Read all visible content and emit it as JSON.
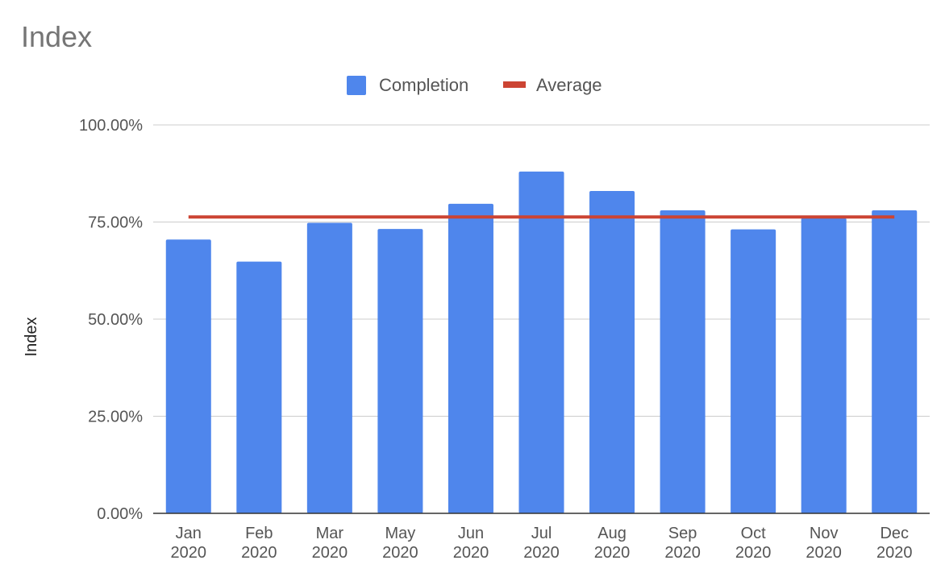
{
  "chart_data": {
    "type": "bar",
    "title": "Index",
    "ylabel": "Index",
    "xlabel": "",
    "categories": [
      [
        "Jan",
        "2020"
      ],
      [
        "Feb",
        "2020"
      ],
      [
        "Mar",
        "2020"
      ],
      [
        "May",
        "2020"
      ],
      [
        "Jun",
        "2020"
      ],
      [
        "Jul",
        "2020"
      ],
      [
        "Aug",
        "2020"
      ],
      [
        "Sep",
        "2020"
      ],
      [
        "Oct",
        "2020"
      ],
      [
        "Nov",
        "2020"
      ],
      [
        "Dec",
        "2020"
      ]
    ],
    "series": [
      {
        "name": "Completion",
        "type": "bar",
        "color": "#4f86ec",
        "values": [
          0.705,
          0.648,
          0.748,
          0.732,
          0.797,
          0.88,
          0.83,
          0.78,
          0.731,
          0.76,
          0.78
        ]
      },
      {
        "name": "Average",
        "type": "line",
        "color": "#cc4433",
        "values": [
          0.763,
          0.763,
          0.763,
          0.763,
          0.763,
          0.763,
          0.763,
          0.763,
          0.763,
          0.763,
          0.763
        ]
      }
    ],
    "ylim": [
      0,
      1
    ],
    "yticks": [
      {
        "value": 0,
        "label": "0.00%"
      },
      {
        "value": 0.25,
        "label": "25.00%"
      },
      {
        "value": 0.5,
        "label": "50.00%"
      },
      {
        "value": 0.75,
        "label": "75.00%"
      },
      {
        "value": 1,
        "label": "100.00%"
      }
    ],
    "grid": true,
    "legend_position": "top-center"
  }
}
